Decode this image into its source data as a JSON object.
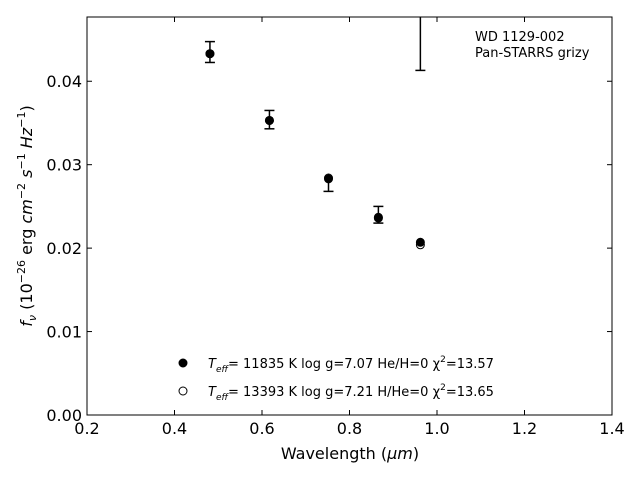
{
  "chart_data": {
    "type": "scatter",
    "annotation_lines": [
      "WD 1129-002",
      "Pan-STARRS grizy"
    ],
    "xlabel": "Wavelength (μm)",
    "ylabel": "fν (10⁻²⁶ erg cm⁻² s⁻¹ Hz⁻¹)",
    "xlim": [
      0.2,
      1.4
    ],
    "ylim": [
      0.0,
      0.0477
    ],
    "xticks": [
      0.2,
      0.4,
      0.6,
      0.8,
      1.0,
      1.2,
      1.4
    ],
    "xtick_labels": [
      "0.2",
      "0.4",
      "0.6",
      "0.8",
      "1.0",
      "1.2",
      "1.4"
    ],
    "yticks": [
      0.0,
      0.01,
      0.02,
      0.03,
      0.04
    ],
    "ytick_labels": [
      "0.00",
      "0.01",
      "0.02",
      "0.03",
      "0.04"
    ],
    "grid": false,
    "legend_position": "bottom-center",
    "observed": {
      "x": [
        0.481,
        0.617,
        0.752,
        0.866,
        0.962
      ],
      "y": [
        0.0435,
        0.0354,
        0.0282,
        0.024,
        0.0205
      ],
      "err_low": [
        0.00125,
        0.0011,
        0.0014,
        0.001,
        0.0
      ],
      "err_high": [
        0.00125,
        0.0011,
        0.0,
        0.001,
        0.0
      ]
    },
    "y_band_errorbar": {
      "x": 0.962,
      "y_low": 0.0413,
      "y_high": 0.0477
    },
    "series": [
      {
        "name": "T_eff= 11835 K  log g=7.07  He/H=0  χ²=13.57",
        "marker": "filled-circle",
        "x": [
          0.481,
          0.617,
          0.752,
          0.866,
          0.962
        ],
        "y": [
          0.0433,
          0.0353,
          0.0283,
          0.0236,
          0.0207
        ]
      },
      {
        "name": "T_eff= 13393 K  log g=7.21  H/He=0  χ²=13.65",
        "marker": "open-circle",
        "x": [
          0.481,
          0.617,
          0.752,
          0.866,
          0.962
        ],
        "y": [
          0.0433,
          0.0353,
          0.0284,
          0.0237,
          0.0204
        ]
      }
    ],
    "legend": [
      {
        "prefix": "T",
        "sub": "eff",
        "rest": "= 11835 K  log g=7.07  He/H=0  χ",
        "sup": "2",
        "tail": "=13.57",
        "marker": "filled-circle"
      },
      {
        "prefix": "T",
        "sub": "eff",
        "rest": "= 13393 K  log g=7.21  H/He=0  χ",
        "sup": "2",
        "tail": "=13.65",
        "marker": "open-circle"
      }
    ],
    "colors": {
      "marker": "#000000",
      "errorbar": "#000000",
      "axes": "#000000"
    }
  }
}
